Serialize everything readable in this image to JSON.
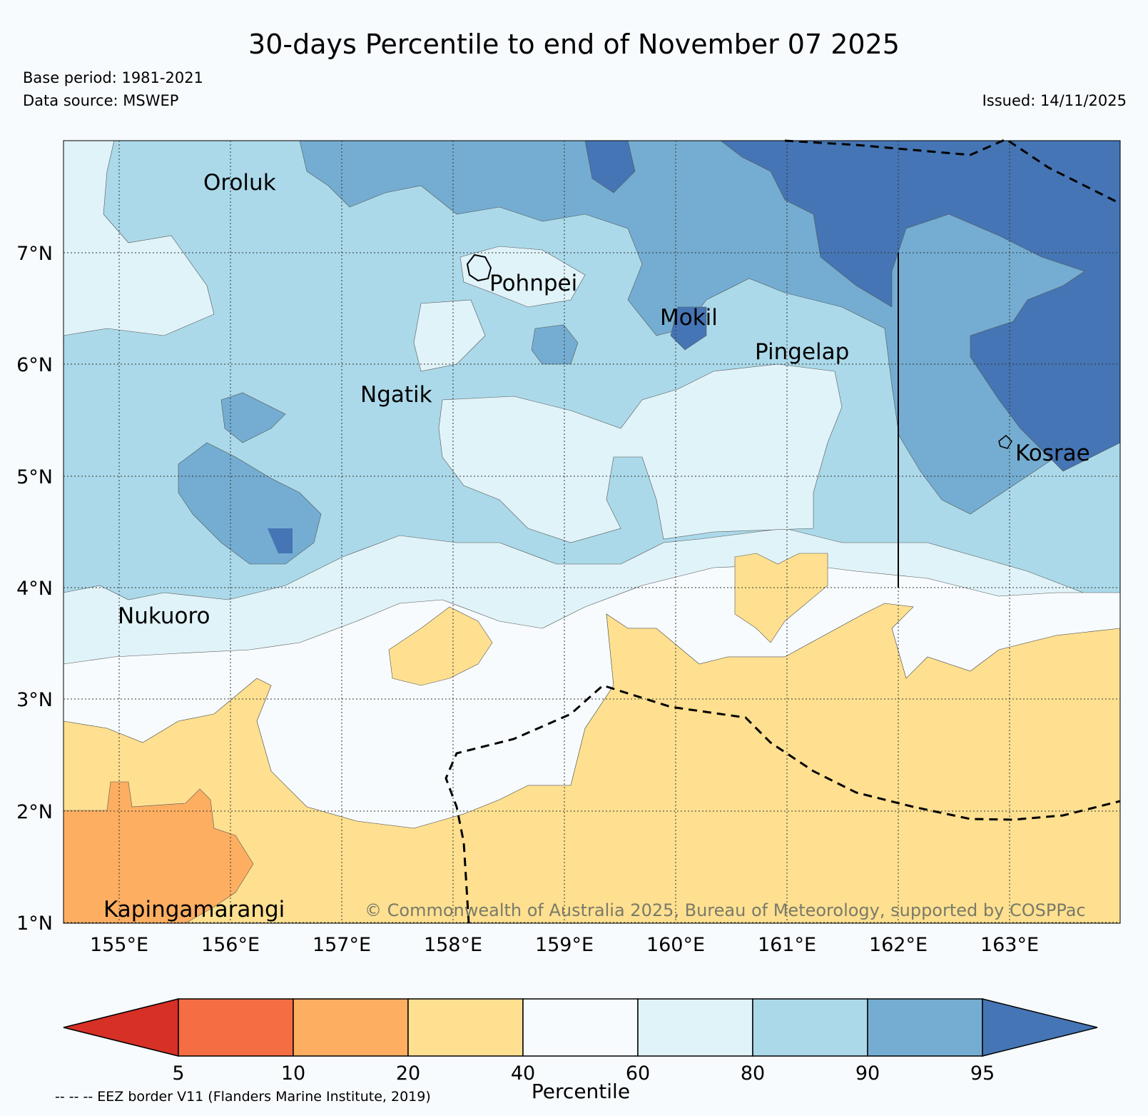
{
  "title": "30-days Percentile to end of November 07 2025",
  "base_period": "Base period: 1981-2021",
  "data_source": "Data source: MSWEP",
  "issued": "Issued: 14/11/2025",
  "copyright": "© Commonwealth of Australia 2025, Bureau of Meteorology, supported by COSPPac",
  "eez_note": "-- -- -- EEZ border V11 (Flanders Marine Institute, 2019)",
  "map": {
    "lat_labels": [
      "7°N",
      "6°N",
      "5°N",
      "4°N",
      "3°N",
      "2°N",
      "1°N"
    ],
    "lon_labels": [
      "155°E",
      "156°E",
      "157°E",
      "158°E",
      "159°E",
      "160°E",
      "161°E",
      "162°E",
      "163°E"
    ],
    "islands": [
      "Oroluk",
      "Pohnpei",
      "Mokil",
      "Pingelap",
      "Ngatik",
      "Kosrae",
      "Nukuoro",
      "Kapingamarangi"
    ]
  },
  "colorbar": {
    "title": "Percentile",
    "ticks": [
      "5",
      "10",
      "20",
      "40",
      "60",
      "80",
      "90",
      "95"
    ],
    "colors": {
      "lt5": "#d73027",
      "c5_10": "#f46d43",
      "c10_20": "#fdae61",
      "c20_40": "#fee090",
      "c40_60": "#f7fbfd",
      "c60_80": "#e0f3f8",
      "c80_90": "#abd9e9",
      "c90_95": "#74add1",
      "gt95": "#4575b4"
    }
  }
}
